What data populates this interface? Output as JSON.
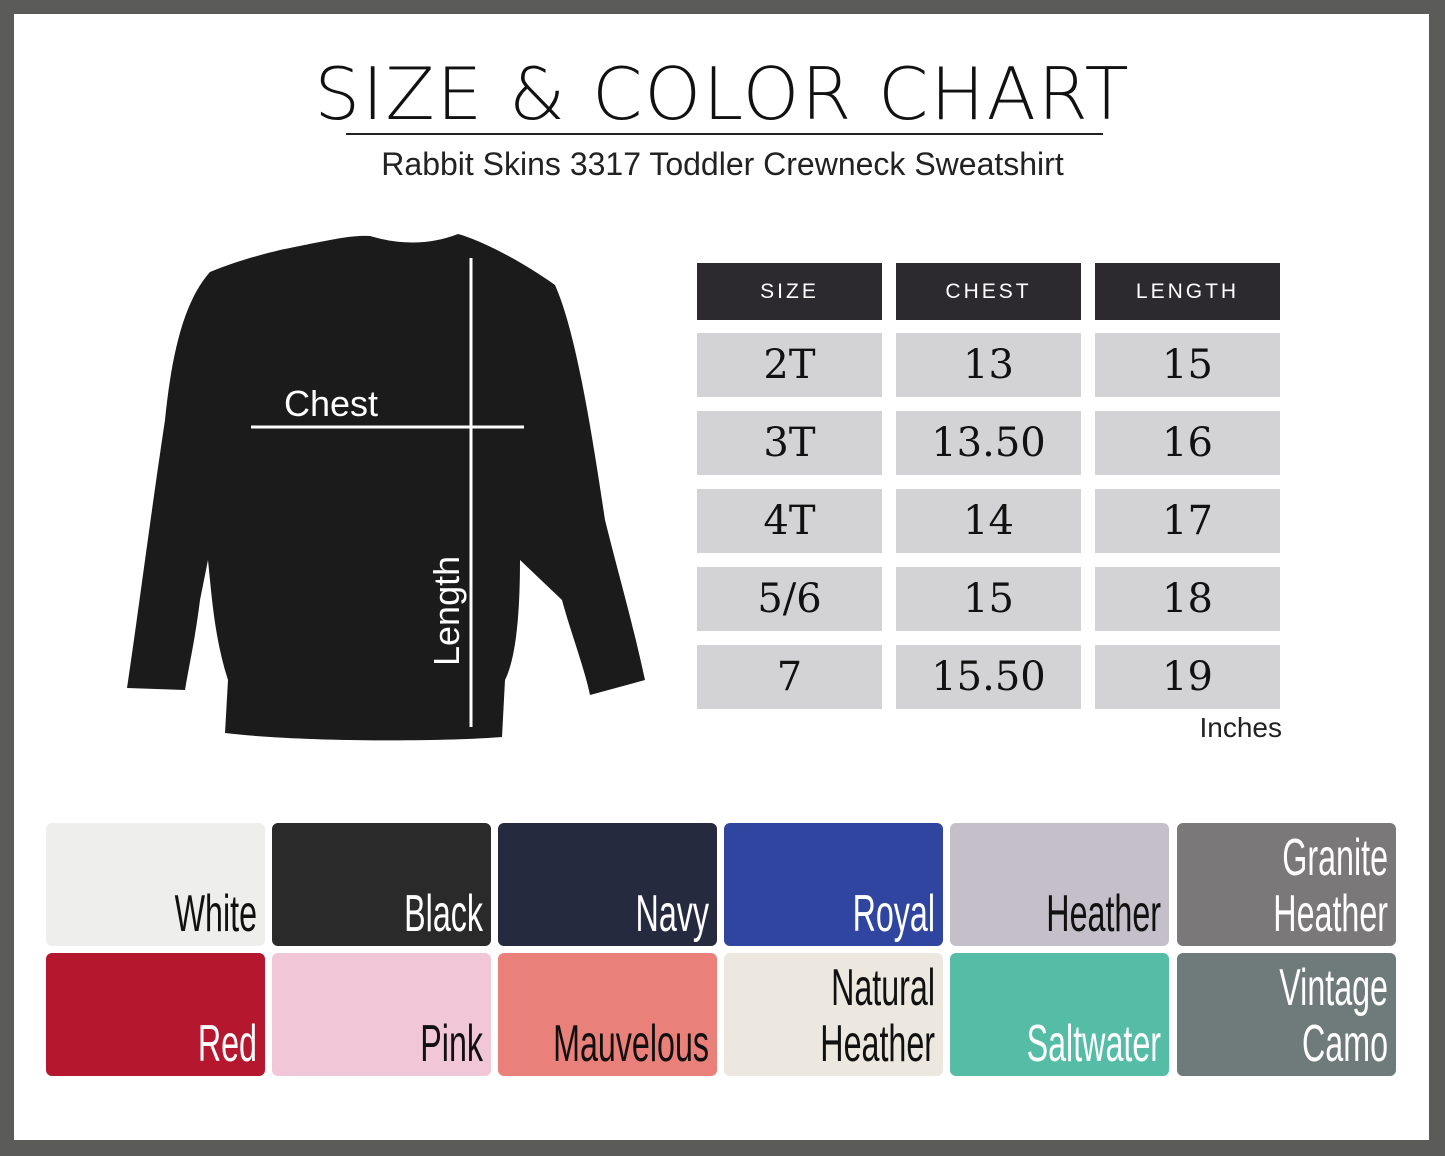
{
  "title": "SIZE & COLOR CHART",
  "subtitle": "Rabbit Skins 3317 Toddler Crewneck Sweatshirt",
  "diagram": {
    "chest_label": "Chest",
    "length_label": "Length"
  },
  "table": {
    "headers": [
      "SIZE",
      "CHEST",
      "LENGTH"
    ],
    "rows": [
      [
        "2T",
        "13",
        "15"
      ],
      [
        "3T",
        "13.50",
        "16"
      ],
      [
        "4T",
        "14",
        "17"
      ],
      [
        "5/6",
        "15",
        "18"
      ],
      [
        "7",
        "15.50",
        "19"
      ]
    ],
    "unit": "Inches"
  },
  "colors": [
    {
      "name": "White",
      "hex": "#eeeeec",
      "text": "#111"
    },
    {
      "name": "Black",
      "hex": "#2a2a2a",
      "text": "#fff"
    },
    {
      "name": "Navy",
      "hex": "#252a3e",
      "text": "#fff"
    },
    {
      "name": "Royal",
      "hex": "#2f45a0",
      "text": "#fff"
    },
    {
      "name": "Heather",
      "hex": "#c4bfc8",
      "text": "#111"
    },
    {
      "name": "Granite\nHeather",
      "hex": "#7a7878",
      "text": "#fff"
    },
    {
      "name": "Red",
      "hex": "#b5172e",
      "text": "#fff"
    },
    {
      "name": "Pink",
      "hex": "#f1c6d6",
      "text": "#111"
    },
    {
      "name": "Mauvelous",
      "hex": "#ea807a",
      "text": "#111"
    },
    {
      "name": "Natural\nHeather",
      "hex": "#ece8e0",
      "text": "#111"
    },
    {
      "name": "Saltwater",
      "hex": "#55bca5",
      "text": "#fff"
    },
    {
      "name": "Vintage\nCamo",
      "hex": "#6f7a7a",
      "text": "#fff"
    }
  ]
}
